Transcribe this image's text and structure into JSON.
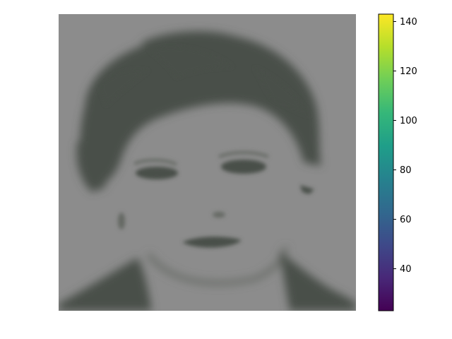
{
  "chart_data": {
    "type": "heatmap",
    "title": "",
    "xlabel": "",
    "ylabel": "",
    "axes_visible": false,
    "image": {
      "description_kind": "grayscale portrait face rendered with low-contrast tinted palette",
      "background_color": "#8c8c8c",
      "hair_color": "#4a5048",
      "shadow_color": "#646862"
    },
    "colorbar": {
      "colormap": "viridis",
      "range": [
        23,
        143
      ],
      "ticks": [
        40,
        60,
        80,
        100,
        120,
        140
      ],
      "tick_labels": [
        "40",
        "60",
        "80",
        "100",
        "120",
        "140"
      ],
      "colors": [
        "#440154",
        "#482878",
        "#3e4989",
        "#31688e",
        "#26828e",
        "#1f9e89",
        "#35b779",
        "#6ece58",
        "#b5de2b",
        "#fde725"
      ]
    }
  }
}
